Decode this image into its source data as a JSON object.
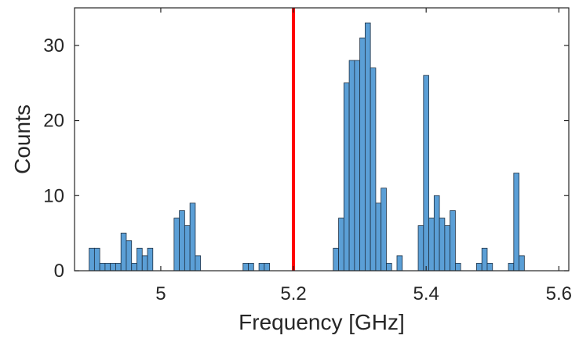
{
  "chart_data": {
    "type": "bar",
    "xlabel": "Frequency [GHz]",
    "ylabel": "Counts",
    "xlim": [
      4.87,
      5.615
    ],
    "ylim": [
      0,
      35
    ],
    "grid": false,
    "legend": "none",
    "bin_width": 0.008,
    "bars": [
      {
        "x": 4.896,
        "value": 3
      },
      {
        "x": 4.904,
        "value": 3
      },
      {
        "x": 4.912,
        "value": 1
      },
      {
        "x": 4.92,
        "value": 1
      },
      {
        "x": 4.928,
        "value": 1
      },
      {
        "x": 4.936,
        "value": 1
      },
      {
        "x": 4.944,
        "value": 5
      },
      {
        "x": 4.952,
        "value": 4
      },
      {
        "x": 4.96,
        "value": 1
      },
      {
        "x": 4.968,
        "value": 3
      },
      {
        "x": 4.976,
        "value": 2
      },
      {
        "x": 4.984,
        "value": 3
      },
      {
        "x": 5.024,
        "value": 7
      },
      {
        "x": 5.032,
        "value": 8
      },
      {
        "x": 5.04,
        "value": 6
      },
      {
        "x": 5.048,
        "value": 9
      },
      {
        "x": 5.056,
        "value": 2
      },
      {
        "x": 5.128,
        "value": 1
      },
      {
        "x": 5.136,
        "value": 1
      },
      {
        "x": 5.152,
        "value": 1
      },
      {
        "x": 5.16,
        "value": 1
      },
      {
        "x": 5.264,
        "value": 3
      },
      {
        "x": 5.272,
        "value": 7
      },
      {
        "x": 5.28,
        "value": 25
      },
      {
        "x": 5.288,
        "value": 28
      },
      {
        "x": 5.296,
        "value": 28
      },
      {
        "x": 5.304,
        "value": 31
      },
      {
        "x": 5.312,
        "value": 33
      },
      {
        "x": 5.32,
        "value": 27
      },
      {
        "x": 5.328,
        "value": 9
      },
      {
        "x": 5.336,
        "value": 11
      },
      {
        "x": 5.344,
        "value": 1
      },
      {
        "x": 5.36,
        "value": 2
      },
      {
        "x": 5.392,
        "value": 6
      },
      {
        "x": 5.4,
        "value": 26
      },
      {
        "x": 5.408,
        "value": 7
      },
      {
        "x": 5.416,
        "value": 10
      },
      {
        "x": 5.424,
        "value": 7
      },
      {
        "x": 5.432,
        "value": 6
      },
      {
        "x": 5.44,
        "value": 8
      },
      {
        "x": 5.448,
        "value": 1
      },
      {
        "x": 5.48,
        "value": 1
      },
      {
        "x": 5.488,
        "value": 3
      },
      {
        "x": 5.496,
        "value": 1
      },
      {
        "x": 5.528,
        "value": 1
      },
      {
        "x": 5.536,
        "value": 13
      },
      {
        "x": 5.544,
        "value": 2
      }
    ],
    "xticks": [
      {
        "value": 5.0,
        "label": "5"
      },
      {
        "value": 5.2,
        "label": "5.2"
      },
      {
        "value": 5.4,
        "label": "5.4"
      },
      {
        "value": 5.6,
        "label": "5.6"
      }
    ],
    "yticks": [
      {
        "value": 0,
        "label": "0"
      },
      {
        "value": 10,
        "label": "10"
      },
      {
        "value": 20,
        "label": "20"
      },
      {
        "value": 30,
        "label": "30"
      }
    ],
    "reference_line": {
      "x": 5.2,
      "color": "#ff0000"
    },
    "colors": {
      "bar_fill": "#5b9fd6",
      "bar_edge": "#1f3144",
      "axis": "#262626"
    }
  }
}
